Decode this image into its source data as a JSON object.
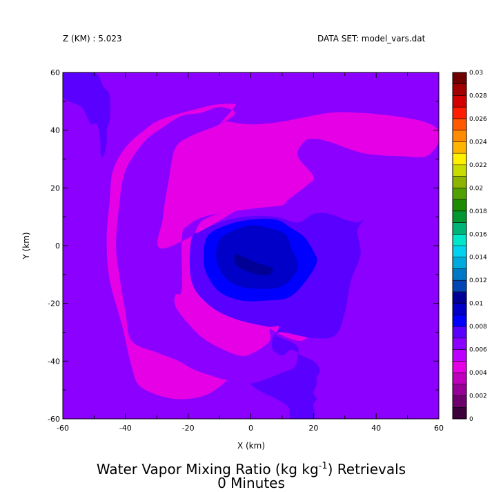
{
  "header": {
    "z_label": "Z (KM) : 5.023",
    "dataset_label": "DATA SET: model_vars.dat"
  },
  "chart_data": {
    "type": "heatmap",
    "title_line1": "Water Vapor Mixing Ratio (kg kg",
    "title_sup": "-1",
    "title_line1_end": ") Retrievals",
    "title_line2": "0 Minutes",
    "xlabel": "X (km)",
    "ylabel": "Y (km)",
    "xlim": [
      -60,
      60
    ],
    "ylim": [
      -60,
      60
    ],
    "x_ticks": [
      -60,
      -40,
      -20,
      0,
      20,
      40,
      60
    ],
    "y_ticks": [
      -60,
      -40,
      -20,
      0,
      20,
      40,
      60
    ],
    "background_level_color": "#8c00ff",
    "colorbar": {
      "levels": [
        0,
        0.001,
        0.002,
        0.003,
        0.004,
        0.005,
        0.006,
        0.007,
        0.008,
        0.009,
        0.01,
        0.011,
        0.012,
        0.013,
        0.014,
        0.015,
        0.016,
        0.017,
        0.018,
        0.019,
        0.02,
        0.021,
        0.022,
        0.023,
        0.024,
        0.025,
        0.026,
        0.027,
        0.028,
        0.029,
        0.03
      ],
      "tick_labels": [
        "0",
        "0.002",
        "0.004",
        "0.006",
        "0.008",
        "0.01",
        "0.012",
        "0.014",
        "0.016",
        "0.018",
        "0.02",
        "0.022",
        "0.024",
        "0.026",
        "0.028",
        "0.03"
      ],
      "colors": [
        "#3c003c",
        "#6e006e",
        "#960096",
        "#be00be",
        "#e600e6",
        "#be00ff",
        "#8c00ff",
        "#5a00ff",
        "#0000ff",
        "#0000c8",
        "#000096",
        "#0046b4",
        "#0078c8",
        "#00aadc",
        "#00d2f0",
        "#00e6c8",
        "#00b478",
        "#009632",
        "#1e8c00",
        "#50a000",
        "#8cb400",
        "#c8dc00",
        "#fff000",
        "#ffb400",
        "#ff8c00",
        "#ff5a00",
        "#ff1e00",
        "#d20000",
        "#a00000",
        "#6e0000"
      ]
    },
    "regions": [
      {
        "level": 0.0065,
        "color": "#5a00ff",
        "points": [
          [
            -60,
            60
          ],
          [
            -50,
            60
          ],
          [
            -47,
            55
          ],
          [
            -45,
            52
          ],
          [
            -45,
            44
          ],
          [
            -46,
            40
          ],
          [
            -46,
            36
          ],
          [
            -47,
            31
          ],
          [
            -48,
            32
          ],
          [
            -48,
            36
          ],
          [
            -49,
            42
          ],
          [
            -51,
            42
          ],
          [
            -52,
            44
          ],
          [
            -54,
            48
          ],
          [
            -58,
            50
          ],
          [
            -60,
            52
          ]
        ]
      },
      {
        "level": 0.0055,
        "color": "#e600e6",
        "points": [
          [
            -28,
            -1
          ],
          [
            -28,
            10
          ],
          [
            -26,
            24
          ],
          [
            -24,
            34
          ],
          [
            -19,
            38
          ],
          [
            -10,
            42
          ],
          [
            -5,
            46
          ],
          [
            -10,
            48
          ],
          [
            -16,
            46
          ],
          [
            -22,
            45
          ],
          [
            -28,
            41
          ],
          [
            -34,
            36
          ],
          [
            -40,
            26
          ],
          [
            -42,
            14
          ],
          [
            -43,
            0
          ],
          [
            -42,
            -10
          ],
          [
            -40,
            -23
          ],
          [
            -38,
            -33
          ],
          [
            -30,
            -37
          ],
          [
            -23,
            -40
          ],
          [
            -18,
            -43
          ],
          [
            -10,
            -46
          ],
          [
            -8,
            -47
          ],
          [
            -15,
            -52
          ],
          [
            -25,
            -53
          ],
          [
            -35,
            -49
          ],
          [
            -38,
            -42
          ],
          [
            -41,
            -28
          ],
          [
            -45,
            -12
          ],
          [
            -46,
            2
          ],
          [
            -45,
            16
          ],
          [
            -44,
            26
          ],
          [
            -40,
            34
          ],
          [
            -34,
            40
          ],
          [
            -28,
            44
          ],
          [
            -15,
            48
          ],
          [
            -10,
            49
          ],
          [
            -5,
            49
          ],
          [
            -6,
            47
          ],
          [
            -10,
            42
          ],
          [
            -8,
            43
          ],
          [
            0,
            42
          ],
          [
            10,
            43
          ],
          [
            25,
            46
          ],
          [
            35,
            46
          ],
          [
            45,
            45
          ],
          [
            55,
            43
          ],
          [
            60,
            40
          ],
          [
            60,
            36
          ],
          [
            56,
            31
          ],
          [
            48,
            31
          ],
          [
            36,
            32
          ],
          [
            25,
            36
          ],
          [
            20,
            37
          ],
          [
            17,
            36
          ],
          [
            15,
            31
          ],
          [
            20,
            24
          ],
          [
            18,
            21
          ],
          [
            12,
            16
          ],
          [
            10,
            14
          ],
          [
            2,
            13
          ],
          [
            -5,
            12
          ],
          [
            -15,
            10
          ],
          [
            -20,
            7
          ],
          [
            -22,
            3
          ],
          [
            -22,
            -15
          ],
          [
            -24,
            -17
          ],
          [
            -24,
            -21
          ],
          [
            -20,
            -27
          ],
          [
            -14,
            -33
          ],
          [
            -4,
            -38
          ],
          [
            1,
            -37
          ],
          [
            6,
            -33
          ],
          [
            6,
            -29
          ],
          [
            8,
            -30
          ],
          [
            12,
            -32
          ],
          [
            16,
            -33
          ],
          [
            18,
            -31
          ],
          [
            14,
            -27
          ],
          [
            8,
            -25
          ],
          [
            -2,
            -22
          ],
          [
            -10,
            -17
          ],
          [
            -17,
            -9
          ],
          [
            -18,
            -4
          ],
          [
            -18,
            3
          ],
          [
            -15,
            9
          ],
          [
            -5,
            12
          ]
        ]
      },
      {
        "level": 0.0075,
        "color": "#5a00ff",
        "points": [
          [
            -19,
            2
          ],
          [
            -19,
            -12
          ],
          [
            -14,
            -20
          ],
          [
            -6,
            -25
          ],
          [
            5,
            -28
          ],
          [
            9,
            -28
          ],
          [
            7,
            -32
          ],
          [
            7,
            -36
          ],
          [
            10,
            -38
          ],
          [
            13,
            -36
          ],
          [
            16,
            -38
          ],
          [
            20,
            -40
          ],
          [
            22,
            -43
          ],
          [
            21,
            -46
          ],
          [
            21,
            -48
          ],
          [
            20,
            -51
          ],
          [
            21,
            -53
          ],
          [
            20,
            -55
          ],
          [
            20,
            -60
          ],
          [
            13,
            -60
          ],
          [
            12,
            -56
          ],
          [
            8,
            -53
          ],
          [
            4,
            -51
          ],
          [
            0,
            -48
          ],
          [
            3,
            -47
          ],
          [
            10,
            -44
          ],
          [
            14,
            -42
          ],
          [
            15,
            -38
          ],
          [
            15,
            -35
          ],
          [
            12,
            -33
          ],
          [
            8,
            -31
          ],
          [
            10,
            -30
          ],
          [
            20,
            -32
          ],
          [
            27,
            -31
          ],
          [
            30,
            -23
          ],
          [
            32,
            -12
          ],
          [
            35,
            -3
          ],
          [
            34,
            5
          ],
          [
            36,
            9
          ],
          [
            34,
            8
          ],
          [
            30,
            9
          ],
          [
            25,
            11
          ],
          [
            20,
            11
          ],
          [
            15,
            8
          ],
          [
            8,
            10
          ],
          [
            -2,
            10
          ],
          [
            -10,
            8
          ],
          [
            -16,
            5
          ]
        ]
      },
      {
        "level": 0.0085,
        "color": "#0000ff",
        "points": [
          [
            -14,
            3
          ],
          [
            -15,
            -5
          ],
          [
            -14,
            -10
          ],
          [
            -10,
            -16
          ],
          [
            -3,
            -19
          ],
          [
            5,
            -19
          ],
          [
            12,
            -18
          ],
          [
            17,
            -13
          ],
          [
            21,
            -6
          ],
          [
            20,
            -2
          ],
          [
            17,
            3
          ],
          [
            13,
            6
          ],
          [
            8,
            9
          ],
          [
            0,
            9
          ],
          [
            -8,
            7
          ]
        ]
      },
      {
        "level": 0.0095,
        "color": "#0000c8",
        "points": [
          [
            -10,
            2
          ],
          [
            -11,
            -4
          ],
          [
            -9,
            -10
          ],
          [
            -4,
            -14
          ],
          [
            4,
            -15
          ],
          [
            10,
            -14
          ],
          [
            14,
            -10
          ],
          [
            15,
            -6
          ],
          [
            13,
            -1
          ],
          [
            11,
            4
          ],
          [
            6,
            6
          ],
          [
            0,
            7
          ],
          [
            -6,
            5
          ]
        ]
      },
      {
        "level": 0.0105,
        "color": "#000096",
        "points": [
          [
            -5,
            -3
          ],
          [
            -5,
            -6
          ],
          [
            -3,
            -8
          ],
          [
            2,
            -10
          ],
          [
            6,
            -10
          ],
          [
            7,
            -8
          ],
          [
            5,
            -7
          ],
          [
            2,
            -6
          ],
          [
            -2,
            -4
          ]
        ]
      }
    ]
  }
}
